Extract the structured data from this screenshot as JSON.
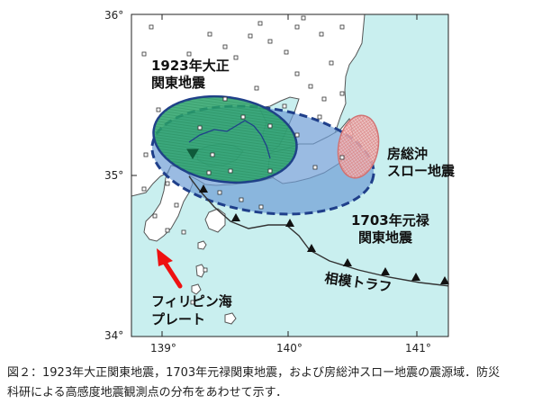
{
  "map": {
    "lat_ticks": [
      "36°",
      "35°",
      "34°"
    ],
    "lon_ticks": [
      "139°",
      "140°",
      "141°"
    ]
  },
  "labels": {
    "taisho_line1": "1923年大正",
    "taisho_line2": "関東地震",
    "boso_line1": "房総沖",
    "boso_line2": "スロー地震",
    "genroku_line1": "1703年元禄",
    "genroku_line2": "関東地震",
    "sagami_trough": "相模トラフ",
    "philippine_line1": "フィリピン海",
    "philippine_line2": "プレート"
  },
  "colors": {
    "sea": "#c9efef",
    "land": "#ffffff",
    "taisho_fill": "#2aa36a",
    "genroku_fill": "#6f9ed6",
    "boso_fill": "#f4b9b9",
    "outline": "#1f3f8a",
    "arrow": "#ee1111"
  },
  "caption": {
    "line1": "図２：1923年大正関東地震，1703年元禄関東地震，および房総沖スロー地震の震源域．防災",
    "line2": "科研による高感度地震観測点の分布をあわせて示す．"
  }
}
